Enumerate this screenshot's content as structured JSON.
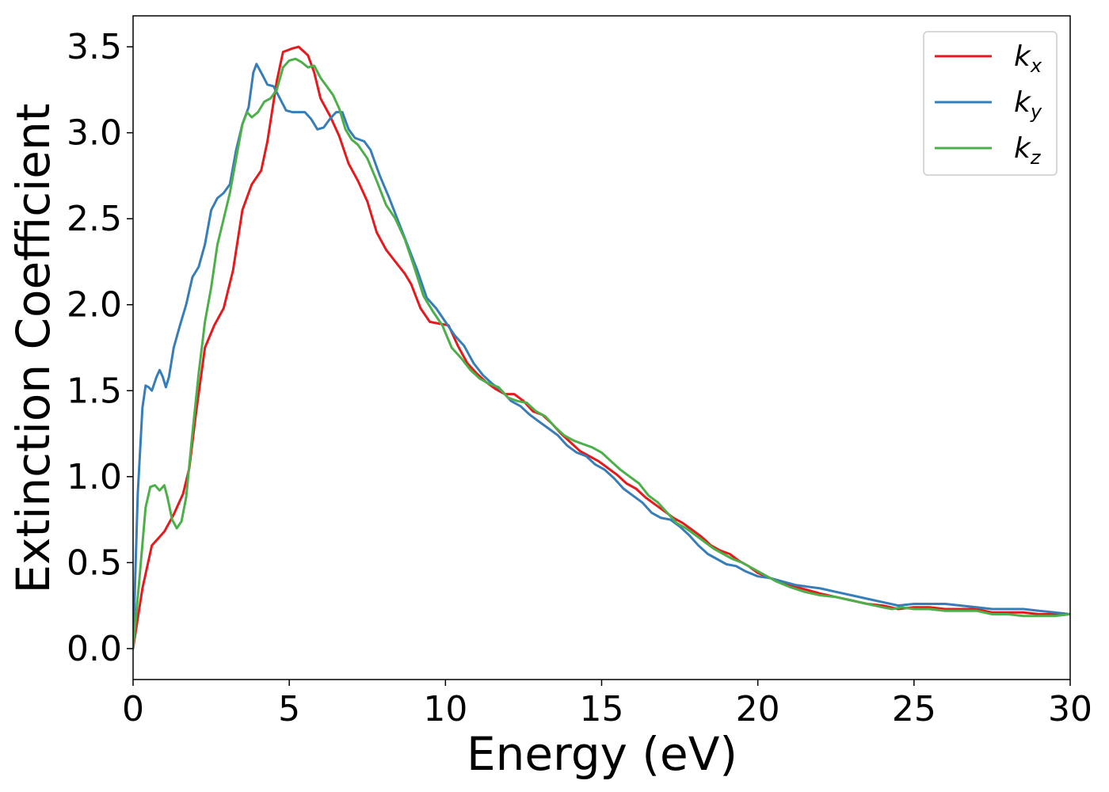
{
  "chart_data": {
    "type": "line",
    "xlabel": "Energy (eV)",
    "ylabel": "Extinction Coefficient",
    "xlim": [
      0,
      30
    ],
    "ylim": [
      -0.18,
      3.68
    ],
    "xticks": [
      "0",
      "5",
      "10",
      "15",
      "20",
      "25",
      "30"
    ],
    "yticks": [
      "0.0",
      "0.5",
      "1.0",
      "1.5",
      "2.0",
      "2.5",
      "3.0",
      "3.5"
    ],
    "grid": false,
    "legend_position": "top-right",
    "series": [
      {
        "name": "k_x",
        "label_main": "k",
        "label_sub": "x",
        "color": "#e41a1c",
        "points": [
          [
            0,
            0
          ],
          [
            0.3,
            0.35
          ],
          [
            0.6,
            0.6
          ],
          [
            1.0,
            0.68
          ],
          [
            1.3,
            0.78
          ],
          [
            1.6,
            0.9
          ],
          [
            1.8,
            1.05
          ],
          [
            2.0,
            1.35
          ],
          [
            2.3,
            1.75
          ],
          [
            2.6,
            1.88
          ],
          [
            2.9,
            1.98
          ],
          [
            3.2,
            2.2
          ],
          [
            3.5,
            2.55
          ],
          [
            3.8,
            2.7
          ],
          [
            4.1,
            2.78
          ],
          [
            4.3,
            2.95
          ],
          [
            4.6,
            3.3
          ],
          [
            4.8,
            3.47
          ],
          [
            5.1,
            3.49
          ],
          [
            5.3,
            3.5
          ],
          [
            5.6,
            3.45
          ],
          [
            5.8,
            3.35
          ],
          [
            6.0,
            3.2
          ],
          [
            6.3,
            3.1
          ],
          [
            6.6,
            2.98
          ],
          [
            6.9,
            2.82
          ],
          [
            7.2,
            2.72
          ],
          [
            7.5,
            2.6
          ],
          [
            7.8,
            2.42
          ],
          [
            8.1,
            2.32
          ],
          [
            8.4,
            2.25
          ],
          [
            8.7,
            2.18
          ],
          [
            8.9,
            2.12
          ],
          [
            9.2,
            1.98
          ],
          [
            9.5,
            1.9
          ],
          [
            9.8,
            1.89
          ],
          [
            10.1,
            1.88
          ],
          [
            10.4,
            1.76
          ],
          [
            10.7,
            1.66
          ],
          [
            11.0,
            1.6
          ],
          [
            11.3,
            1.55
          ],
          [
            11.6,
            1.51
          ],
          [
            11.9,
            1.48
          ],
          [
            12.2,
            1.48
          ],
          [
            12.5,
            1.44
          ],
          [
            12.8,
            1.38
          ],
          [
            13.1,
            1.36
          ],
          [
            13.4,
            1.31
          ],
          [
            13.7,
            1.25
          ],
          [
            14.0,
            1.2
          ],
          [
            14.3,
            1.15
          ],
          [
            14.6,
            1.12
          ],
          [
            14.9,
            1.09
          ],
          [
            15.2,
            1.05
          ],
          [
            15.5,
            1.01
          ],
          [
            15.8,
            0.96
          ],
          [
            16.1,
            0.93
          ],
          [
            16.4,
            0.88
          ],
          [
            16.7,
            0.84
          ],
          [
            17.0,
            0.8
          ],
          [
            17.3,
            0.76
          ],
          [
            17.6,
            0.73
          ],
          [
            17.9,
            0.69
          ],
          [
            18.2,
            0.65
          ],
          [
            18.5,
            0.6
          ],
          [
            18.8,
            0.57
          ],
          [
            19.1,
            0.55
          ],
          [
            19.4,
            0.51
          ],
          [
            19.7,
            0.48
          ],
          [
            20.0,
            0.44
          ],
          [
            20.4,
            0.41
          ],
          [
            20.8,
            0.38
          ],
          [
            21.2,
            0.36
          ],
          [
            21.6,
            0.34
          ],
          [
            22.0,
            0.32
          ],
          [
            22.5,
            0.3
          ],
          [
            23.0,
            0.28
          ],
          [
            23.5,
            0.26
          ],
          [
            24.0,
            0.25
          ],
          [
            24.5,
            0.23
          ],
          [
            25.0,
            0.24
          ],
          [
            25.5,
            0.24
          ],
          [
            26.0,
            0.23
          ],
          [
            26.5,
            0.23
          ],
          [
            27.0,
            0.23
          ],
          [
            27.5,
            0.21
          ],
          [
            28.0,
            0.21
          ],
          [
            28.5,
            0.21
          ],
          [
            29.0,
            0.2
          ],
          [
            29.5,
            0.2
          ],
          [
            30.0,
            0.2
          ]
        ]
      },
      {
        "name": "k_y",
        "label_main": "k",
        "label_sub": "y",
        "color": "#377eb8",
        "points": [
          [
            0,
            0
          ],
          [
            0.15,
            0.9
          ],
          [
            0.3,
            1.4
          ],
          [
            0.4,
            1.53
          ],
          [
            0.5,
            1.52
          ],
          [
            0.6,
            1.5
          ],
          [
            0.75,
            1.58
          ],
          [
            0.85,
            1.62
          ],
          [
            0.95,
            1.58
          ],
          [
            1.05,
            1.52
          ],
          [
            1.15,
            1.58
          ],
          [
            1.3,
            1.75
          ],
          [
            1.5,
            1.88
          ],
          [
            1.7,
            2.0
          ],
          [
            1.9,
            2.16
          ],
          [
            2.1,
            2.22
          ],
          [
            2.3,
            2.35
          ],
          [
            2.5,
            2.55
          ],
          [
            2.7,
            2.62
          ],
          [
            2.9,
            2.65
          ],
          [
            3.1,
            2.7
          ],
          [
            3.3,
            2.9
          ],
          [
            3.5,
            3.05
          ],
          [
            3.7,
            3.15
          ],
          [
            3.85,
            3.35
          ],
          [
            3.95,
            3.4
          ],
          [
            4.1,
            3.35
          ],
          [
            4.3,
            3.28
          ],
          [
            4.5,
            3.27
          ],
          [
            4.7,
            3.2
          ],
          [
            4.9,
            3.13
          ],
          [
            5.1,
            3.12
          ],
          [
            5.3,
            3.12
          ],
          [
            5.5,
            3.12
          ],
          [
            5.7,
            3.08
          ],
          [
            5.9,
            3.02
          ],
          [
            6.1,
            3.03
          ],
          [
            6.3,
            3.08
          ],
          [
            6.5,
            3.12
          ],
          [
            6.7,
            3.12
          ],
          [
            6.9,
            3.02
          ],
          [
            7.1,
            2.97
          ],
          [
            7.4,
            2.95
          ],
          [
            7.6,
            2.9
          ],
          [
            7.9,
            2.75
          ],
          [
            8.2,
            2.62
          ],
          [
            8.5,
            2.48
          ],
          [
            8.8,
            2.34
          ],
          [
            9.1,
            2.2
          ],
          [
            9.4,
            2.04
          ],
          [
            9.7,
            1.98
          ],
          [
            10.0,
            1.9
          ],
          [
            10.3,
            1.82
          ],
          [
            10.6,
            1.76
          ],
          [
            10.9,
            1.66
          ],
          [
            11.2,
            1.59
          ],
          [
            11.5,
            1.54
          ],
          [
            11.8,
            1.5
          ],
          [
            12.1,
            1.44
          ],
          [
            12.4,
            1.41
          ],
          [
            12.7,
            1.36
          ],
          [
            13.0,
            1.32
          ],
          [
            13.3,
            1.28
          ],
          [
            13.6,
            1.24
          ],
          [
            13.9,
            1.18
          ],
          [
            14.2,
            1.14
          ],
          [
            14.5,
            1.12
          ],
          [
            14.8,
            1.07
          ],
          [
            15.1,
            1.04
          ],
          [
            15.4,
            0.99
          ],
          [
            15.7,
            0.93
          ],
          [
            16.0,
            0.89
          ],
          [
            16.3,
            0.85
          ],
          [
            16.6,
            0.79
          ],
          [
            16.9,
            0.76
          ],
          [
            17.2,
            0.75
          ],
          [
            17.5,
            0.71
          ],
          [
            17.8,
            0.66
          ],
          [
            18.1,
            0.6
          ],
          [
            18.4,
            0.55
          ],
          [
            18.7,
            0.52
          ],
          [
            19.0,
            0.49
          ],
          [
            19.3,
            0.48
          ],
          [
            19.6,
            0.45
          ],
          [
            20.0,
            0.42
          ],
          [
            20.4,
            0.41
          ],
          [
            20.8,
            0.39
          ],
          [
            21.2,
            0.37
          ],
          [
            21.6,
            0.36
          ],
          [
            22.0,
            0.35
          ],
          [
            22.5,
            0.33
          ],
          [
            23.0,
            0.31
          ],
          [
            23.5,
            0.29
          ],
          [
            24.0,
            0.27
          ],
          [
            24.5,
            0.25
          ],
          [
            25.0,
            0.26
          ],
          [
            25.5,
            0.26
          ],
          [
            26.0,
            0.26
          ],
          [
            26.5,
            0.25
          ],
          [
            27.0,
            0.24
          ],
          [
            27.5,
            0.23
          ],
          [
            28.0,
            0.23
          ],
          [
            28.5,
            0.23
          ],
          [
            29.0,
            0.22
          ],
          [
            29.5,
            0.21
          ],
          [
            30.0,
            0.2
          ]
        ]
      },
      {
        "name": "k_z",
        "label_main": "k",
        "label_sub": "z",
        "color": "#4daf4a",
        "points": [
          [
            0,
            0
          ],
          [
            0.2,
            0.4
          ],
          [
            0.4,
            0.82
          ],
          [
            0.55,
            0.94
          ],
          [
            0.7,
            0.95
          ],
          [
            0.85,
            0.92
          ],
          [
            1.0,
            0.95
          ],
          [
            1.1,
            0.88
          ],
          [
            1.25,
            0.75
          ],
          [
            1.4,
            0.7
          ],
          [
            1.55,
            0.74
          ],
          [
            1.7,
            0.88
          ],
          [
            1.9,
            1.25
          ],
          [
            2.1,
            1.6
          ],
          [
            2.3,
            1.9
          ],
          [
            2.5,
            2.1
          ],
          [
            2.7,
            2.35
          ],
          [
            2.9,
            2.5
          ],
          [
            3.1,
            2.65
          ],
          [
            3.3,
            2.85
          ],
          [
            3.5,
            3.05
          ],
          [
            3.65,
            3.12
          ],
          [
            3.8,
            3.09
          ],
          [
            4.0,
            3.12
          ],
          [
            4.2,
            3.18
          ],
          [
            4.4,
            3.2
          ],
          [
            4.6,
            3.25
          ],
          [
            4.8,
            3.38
          ],
          [
            5.0,
            3.42
          ],
          [
            5.2,
            3.43
          ],
          [
            5.4,
            3.41
          ],
          [
            5.6,
            3.38
          ],
          [
            5.8,
            3.39
          ],
          [
            6.0,
            3.32
          ],
          [
            6.2,
            3.27
          ],
          [
            6.4,
            3.22
          ],
          [
            6.6,
            3.14
          ],
          [
            6.8,
            3.02
          ],
          [
            7.0,
            2.96
          ],
          [
            7.2,
            2.93
          ],
          [
            7.5,
            2.85
          ],
          [
            7.8,
            2.72
          ],
          [
            8.1,
            2.58
          ],
          [
            8.4,
            2.5
          ],
          [
            8.7,
            2.38
          ],
          [
            9.0,
            2.22
          ],
          [
            9.3,
            2.05
          ],
          [
            9.6,
            1.96
          ],
          [
            9.9,
            1.88
          ],
          [
            10.2,
            1.75
          ],
          [
            10.5,
            1.69
          ],
          [
            10.8,
            1.62
          ],
          [
            11.1,
            1.57
          ],
          [
            11.4,
            1.54
          ],
          [
            11.7,
            1.52
          ],
          [
            12.0,
            1.46
          ],
          [
            12.3,
            1.44
          ],
          [
            12.6,
            1.43
          ],
          [
            12.9,
            1.38
          ],
          [
            13.2,
            1.35
          ],
          [
            13.5,
            1.29
          ],
          [
            13.8,
            1.24
          ],
          [
            14.1,
            1.21
          ],
          [
            14.4,
            1.19
          ],
          [
            14.7,
            1.17
          ],
          [
            15.0,
            1.14
          ],
          [
            15.3,
            1.09
          ],
          [
            15.6,
            1.04
          ],
          [
            15.9,
            1.0
          ],
          [
            16.2,
            0.96
          ],
          [
            16.5,
            0.89
          ],
          [
            16.8,
            0.85
          ],
          [
            17.1,
            0.79
          ],
          [
            17.4,
            0.73
          ],
          [
            17.7,
            0.7
          ],
          [
            18.0,
            0.66
          ],
          [
            18.3,
            0.62
          ],
          [
            18.6,
            0.58
          ],
          [
            18.9,
            0.55
          ],
          [
            19.2,
            0.52
          ],
          [
            19.5,
            0.5
          ],
          [
            19.8,
            0.47
          ],
          [
            20.2,
            0.43
          ],
          [
            20.6,
            0.39
          ],
          [
            21.0,
            0.36
          ],
          [
            21.5,
            0.33
          ],
          [
            22.0,
            0.31
          ],
          [
            22.5,
            0.3
          ],
          [
            23.0,
            0.28
          ],
          [
            23.5,
            0.26
          ],
          [
            24.0,
            0.24
          ],
          [
            24.3,
            0.23
          ],
          [
            24.6,
            0.24
          ],
          [
            25.0,
            0.23
          ],
          [
            25.5,
            0.23
          ],
          [
            26.0,
            0.22
          ],
          [
            26.5,
            0.22
          ],
          [
            27.0,
            0.22
          ],
          [
            27.5,
            0.2
          ],
          [
            28.0,
            0.2
          ],
          [
            28.5,
            0.19
          ],
          [
            29.0,
            0.19
          ],
          [
            29.5,
            0.19
          ],
          [
            30.0,
            0.2
          ]
        ]
      }
    ]
  }
}
